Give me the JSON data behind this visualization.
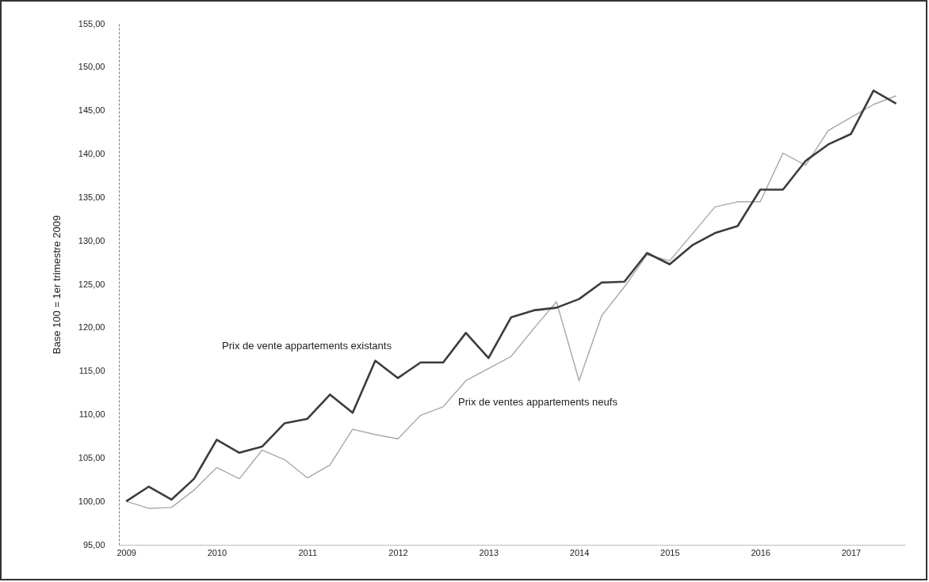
{
  "chart_data": {
    "type": "line",
    "ylabel": "Base 100 = 1er trimestre 2009",
    "x": [
      2009,
      2009.25,
      2009.5,
      2009.75,
      2010,
      2010.25,
      2010.5,
      2010.75,
      2011,
      2011.25,
      2011.5,
      2011.75,
      2012,
      2012.25,
      2012.5,
      2012.75,
      2013,
      2013.25,
      2013.5,
      2013.75,
      2014,
      2014.25,
      2014.5,
      2014.75,
      2015,
      2015.25,
      2015.5,
      2015.75,
      2016,
      2016.25,
      2016.5,
      2016.75,
      2017,
      2017.25,
      2017.5
    ],
    "series": [
      {
        "name": "Prix de ventes appartements neufs",
        "color": "#a8a8a8",
        "values": [
          100,
          99.2,
          99.3,
          101.3,
          103.9,
          102.6,
          105.9,
          104.8,
          102.7,
          104.2,
          108.3,
          107.7,
          107.2,
          109.9,
          110.9,
          113.9,
          115.3,
          116.7,
          119.9,
          123.0,
          113.9,
          121.4,
          124.7,
          128.4,
          127.7,
          130.8,
          133.9,
          134.5,
          134.5,
          140.1,
          138.7,
          142.7,
          144.2,
          145.7,
          146.7
        ]
      },
      {
        "name": "Prix de vente appartements existants",
        "color": "#3c3c3c",
        "values": [
          100,
          101.7,
          100.2,
          102.6,
          107.1,
          105.6,
          106.3,
          109.0,
          109.5,
          112.3,
          110.2,
          116.2,
          114.2,
          116.0,
          116.0,
          119.4,
          116.5,
          121.2,
          122.0,
          122.3,
          123.3,
          125.2,
          125.3,
          128.6,
          127.3,
          129.5,
          130.9,
          131.7,
          135.9,
          135.9,
          139.2,
          141.1,
          142.3,
          147.3,
          145.8
        ]
      }
    ],
    "xlim": [
      2008.92,
      2017.6
    ],
    "xticks": [
      2009,
      2010,
      2011,
      2012,
      2013,
      2014,
      2015,
      2016,
      2017
    ],
    "ylim": [
      95,
      155
    ],
    "yticks": [
      {
        "value": 95,
        "label": "95,00"
      },
      {
        "value": 100,
        "label": "100,00"
      },
      {
        "value": 105,
        "label": "105,00"
      },
      {
        "value": 110,
        "label": "110,00"
      },
      {
        "value": 115,
        "label": "115,00"
      },
      {
        "value": 120,
        "label": "120,00"
      },
      {
        "value": 125,
        "label": "125,00"
      },
      {
        "value": 130,
        "label": "130,00"
      },
      {
        "value": 135,
        "label": "135,00"
      },
      {
        "value": 140,
        "label": "140,00"
      },
      {
        "value": 145,
        "label": "145,00"
      },
      {
        "value": 150,
        "label": "150,00"
      },
      {
        "value": 155,
        "label": "155,00"
      }
    ],
    "grid": false,
    "marker": "none",
    "line_style": "solid"
  }
}
